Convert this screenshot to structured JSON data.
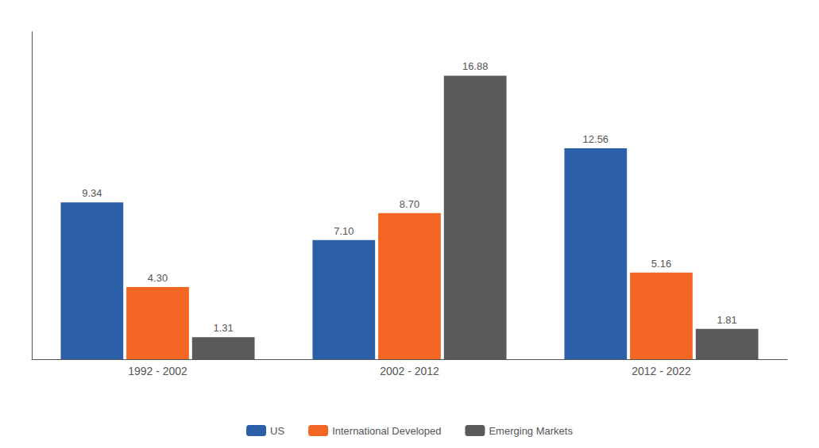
{
  "chart_data": {
    "type": "bar",
    "categories": [
      "1992 - 2002",
      "2002 - 2012",
      "2012 - 2022"
    ],
    "series": [
      {
        "name": "US",
        "color": "#2B5FA8",
        "values": [
          9.34,
          7.1,
          12.56
        ],
        "value_labels": [
          "9.34",
          "7.10",
          "12.56"
        ]
      },
      {
        "name": "International Developed",
        "color": "#F26522",
        "values": [
          4.3,
          8.7,
          5.16
        ],
        "value_labels": [
          "4.30",
          "8.70",
          "5.16"
        ]
      },
      {
        "name": "Emerging Markets",
        "color": "#5A5A5A",
        "values": [
          1.31,
          16.88,
          1.81
        ],
        "value_labels": [
          "1.31",
          "16.88",
          "1.81"
        ]
      }
    ],
    "ylim": [
      0,
      19.5
    ],
    "grid": false,
    "legend": "bottom",
    "data_labels": true,
    "tick_labels": "x"
  }
}
